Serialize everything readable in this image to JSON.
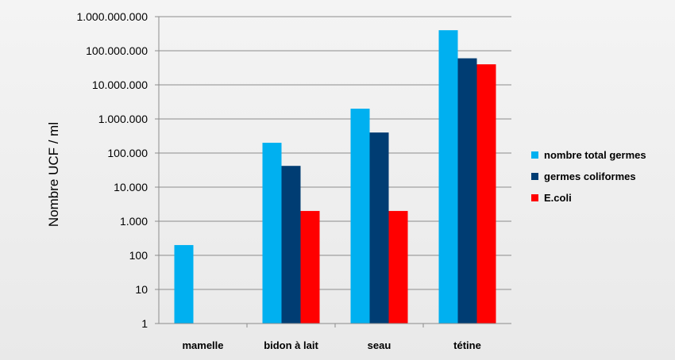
{
  "chart_data": {
    "type": "bar",
    "log_scale": true,
    "title": "",
    "xlabel": "",
    "ylabel": "Nombre UCF / ml",
    "ylim": [
      1,
      1000000000
    ],
    "y_tick_labels": [
      "1",
      "10",
      "100",
      "1.000",
      "10.000",
      "100.000",
      "1.000.000",
      "10.000.000",
      "100.000.000",
      "1.000.000.000"
    ],
    "grid": true,
    "legend_position": "right",
    "categories": [
      "mamelle",
      "bidon à lait",
      "seau",
      "tétine"
    ],
    "series": [
      {
        "name": "nombre total germes",
        "color": "#00b0f0",
        "values": [
          200,
          200000,
          2000000,
          400000000
        ]
      },
      {
        "name": "germes coliformes",
        "color": "#003d73",
        "values": [
          null,
          42000,
          400000,
          60000000
        ]
      },
      {
        "name": "E.coli",
        "color": "#ff0000",
        "values": [
          null,
          2000,
          2000,
          40000000
        ]
      }
    ]
  }
}
